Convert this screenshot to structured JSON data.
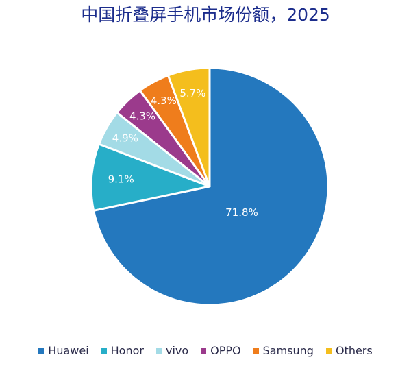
{
  "chart_data": {
    "type": "pie",
    "title": "中国折叠屏手机市场份额，2025",
    "categories": [
      "Huawei",
      "Honor",
      "vivo",
      "OPPO",
      "Samsung",
      "Others"
    ],
    "values": [
      71.8,
      9.1,
      4.9,
      4.3,
      4.3,
      5.7
    ],
    "value_labels": [
      "71.8%",
      "9.1%",
      "4.9%",
      "4.3%",
      "4.3%",
      "5.7%"
    ],
    "colors": [
      "#2478be",
      "#27aec8",
      "#a3dbe6",
      "#9b3a8c",
      "#ef7d1c",
      "#f4be1d"
    ],
    "start": "12 o'clock, clockwise",
    "legend_position": "bottom"
  }
}
